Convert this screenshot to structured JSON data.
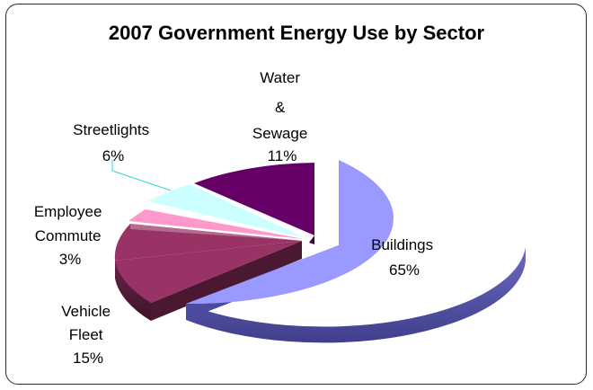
{
  "chart_data": {
    "type": "pie",
    "style": "3d-exploded",
    "title": "2007 Government Energy Use by Sector",
    "slices": [
      {
        "name": "Buildings",
        "value": 65,
        "label": "65%",
        "color": "#9999ff",
        "side": "#5f5fb4"
      },
      {
        "name": "Vehicle Fleet",
        "value": 15,
        "label": "15%",
        "color": "#993366",
        "side": "#5c1f3d"
      },
      {
        "name": "Employee Commute",
        "value": 3,
        "label": "3%",
        "color": "#ff99cc",
        "side": "#b36b8f"
      },
      {
        "name": "Streetlights",
        "value": 6,
        "label": "6%",
        "color": "#ccffff",
        "side": "#8fb3b3"
      },
      {
        "name": "Water & Sewage",
        "value": 11,
        "label": "11%",
        "color": "#660066",
        "side": "#3d003d"
      }
    ],
    "legend": "none"
  }
}
